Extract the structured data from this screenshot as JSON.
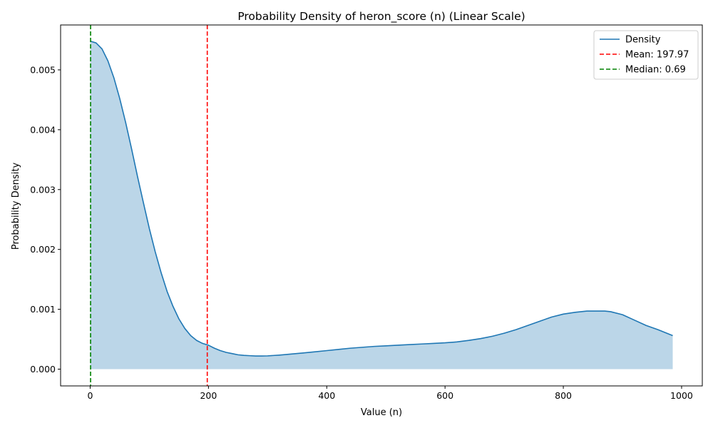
{
  "chart_data": {
    "type": "area",
    "title": "Probability Density of heron_score (n) (Linear Scale)",
    "xlabel": "Value (n)",
    "ylabel": "Probability Density",
    "xlim": [
      -50,
      1035
    ],
    "ylim": [
      -0.00028,
      0.00575
    ],
    "x_ticks": [
      0,
      200,
      400,
      600,
      800,
      1000
    ],
    "x_tick_labels": [
      "0",
      "200",
      "400",
      "600",
      "800",
      "1000"
    ],
    "y_ticks": [
      0.0,
      0.001,
      0.002,
      0.003,
      0.004,
      0.005
    ],
    "y_tick_labels": [
      "0.000",
      "0.001",
      "0.002",
      "0.003",
      "0.004",
      "0.005"
    ],
    "grid": false,
    "legend_position": "top-right",
    "series": [
      {
        "name": "Density",
        "color": "#1f77b4",
        "fill_color": "#1f77b4",
        "x": [
          0,
          10,
          20,
          30,
          40,
          50,
          60,
          70,
          80,
          90,
          100,
          110,
          120,
          130,
          140,
          150,
          160,
          170,
          180,
          190,
          200,
          210,
          220,
          230,
          240,
          250,
          260,
          270,
          280,
          290,
          300,
          320,
          340,
          360,
          380,
          400,
          420,
          440,
          460,
          480,
          500,
          520,
          540,
          560,
          580,
          600,
          620,
          640,
          660,
          680,
          700,
          720,
          740,
          760,
          780,
          800,
          820,
          840,
          860,
          870,
          880,
          900,
          920,
          940,
          960,
          985
        ],
        "y": [
          0.00548,
          0.00545,
          0.00535,
          0.00515,
          0.00487,
          0.00452,
          0.00412,
          0.00368,
          0.00322,
          0.00278,
          0.00235,
          0.00196,
          0.00161,
          0.0013,
          0.00105,
          0.00084,
          0.00068,
          0.00056,
          0.00048,
          0.00043,
          0.0004,
          0.00035,
          0.00031,
          0.00028,
          0.00026,
          0.00024,
          0.00023,
          0.000225,
          0.00022,
          0.00022,
          0.000222,
          0.000235,
          0.000252,
          0.00027,
          0.00029,
          0.00031,
          0.00033,
          0.00035,
          0.000365,
          0.00038,
          0.00039,
          0.0004,
          0.00041,
          0.00042,
          0.00043,
          0.00044,
          0.000455,
          0.00048,
          0.00051,
          0.00055,
          0.0006,
          0.00066,
          0.00073,
          0.0008,
          0.00087,
          0.00092,
          0.00095,
          0.00097,
          0.00097,
          0.00097,
          0.00096,
          0.00091,
          0.00082,
          0.00073,
          0.00066,
          0.00056
        ]
      }
    ],
    "vlines": [
      {
        "name": "Mean: 197.97",
        "x": 197.97,
        "color": "#ff0000",
        "style": "dashed"
      },
      {
        "name": "Median: 0.69",
        "x": 0.69,
        "color": "#008000",
        "style": "dashed"
      }
    ]
  }
}
